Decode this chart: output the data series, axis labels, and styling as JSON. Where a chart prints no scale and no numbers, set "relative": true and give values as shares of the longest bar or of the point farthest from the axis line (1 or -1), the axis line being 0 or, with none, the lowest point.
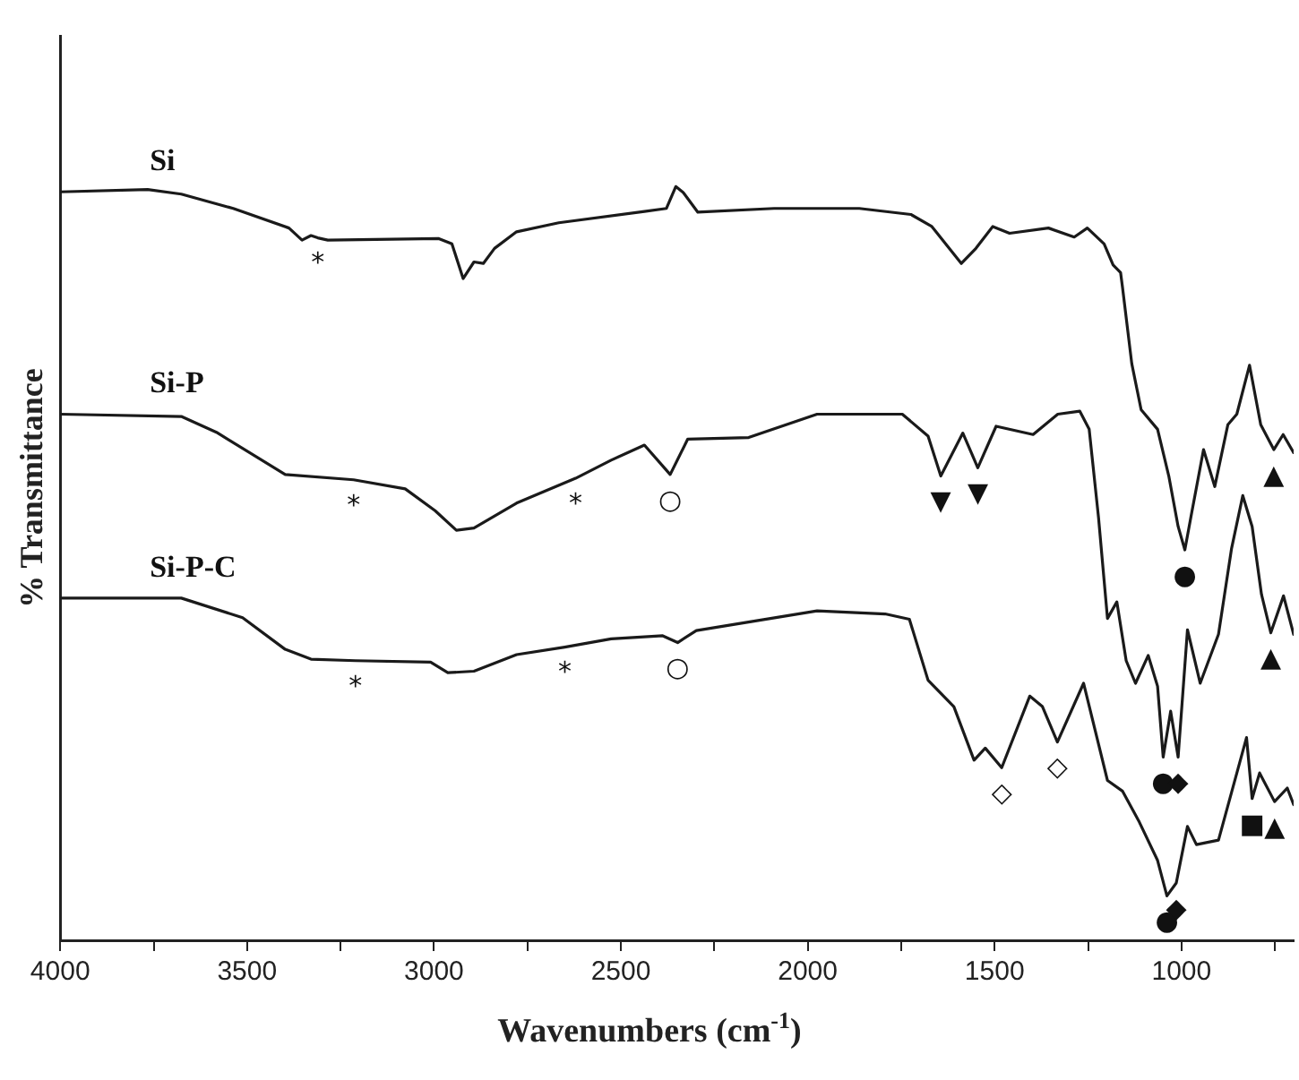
{
  "chart_data": {
    "type": "line",
    "relative": true,
    "xlabel": "Wavenumbers (cm$^{-1}$)",
    "ylabel": "% Transmittance",
    "xlim": [
      4000,
      700
    ],
    "xticks": [
      4000,
      {
        "value": 3750,
        "label": null
      },
      3500,
      {
        "value": 3250,
        "label": null
      },
      3000,
      {
        "value": 2750,
        "label": null
      },
      2500,
      {
        "value": 2250,
        "label": null
      },
      2000,
      {
        "value": 1750,
        "label": null
      },
      1500,
      {
        "value": 1250,
        "label": null
      },
      1000,
      {
        "value": 750,
        "label": null
      }
    ],
    "grid": false,
    "legend": false,
    "marker": "none",
    "line_style": "solid",
    "series": [
      {
        "name": "Si",
        "color": "#1a1a1a",
        "x": [
          4000,
          3766,
          3676,
          3537,
          3388,
          3353,
          3329,
          3311,
          3284,
          2987,
          2952,
          2922,
          2893,
          2868,
          2838,
          2779,
          2666,
          2437,
          2378,
          2353,
          2333,
          2294,
          2090,
          1862,
          1724,
          1668,
          1589,
          1550,
          1505,
          1460,
          1356,
          1287,
          1252,
          1207,
          1183,
          1163,
          1158,
          1133,
          1108,
          1064,
          1034,
          1009,
          991,
          975,
          941,
          911,
          876,
          852,
          818,
          788,
          753,
          728,
          700
        ],
        "values": [
          0.993,
          0.996,
          0.99,
          0.971,
          0.945,
          0.929,
          0.935,
          0.932,
          0.929,
          0.931,
          0.924,
          0.878,
          0.9,
          0.898,
          0.918,
          0.94,
          0.952,
          0.967,
          0.971,
          1,
          0.992,
          0.966,
          0.971,
          0.971,
          0.963,
          0.947,
          0.898,
          0.918,
          0.947,
          0.938,
          0.945,
          0.933,
          0.945,
          0.924,
          0.896,
          0.886,
          0.867,
          0.765,
          0.704,
          0.678,
          0.616,
          0.549,
          0.518,
          0.561,
          0.651,
          0.602,
          0.684,
          0.698,
          0.763,
          0.684,
          0.651,
          0.671,
          0.647
        ]
      },
      {
        "name": "Si-P",
        "color": "#1a1a1a",
        "x": [
          4000,
          3676,
          3582,
          3398,
          3215,
          3077,
          2997,
          2940,
          2893,
          2779,
          2621,
          2526,
          2437,
          2368,
          2321,
          2158,
          1975,
          1747,
          1678,
          1644,
          1585,
          1545,
          1496,
          1397,
          1331,
          1272,
          1247,
          1222,
          1198,
          1173,
          1148,
          1123,
          1089,
          1064,
          1049,
          1029,
          1009,
          984,
          950,
          901,
          866,
          836,
          811,
          786,
          761,
          727,
          700
        ],
        "values": [
          0.698,
          0.695,
          0.674,
          0.618,
          0.611,
          0.599,
          0.57,
          0.544,
          0.547,
          0.58,
          0.613,
          0.637,
          0.657,
          0.618,
          0.665,
          0.667,
          0.698,
          0.698,
          0.669,
          0.616,
          0.673,
          0.627,
          0.682,
          0.671,
          0.698,
          0.702,
          0.678,
          0.561,
          0.427,
          0.449,
          0.371,
          0.341,
          0.378,
          0.337,
          0.243,
          0.304,
          0.243,
          0.412,
          0.341,
          0.406,
          0.52,
          0.59,
          0.549,
          0.459,
          0.408,
          0.457,
          0.406
        ]
      },
      {
        "name": "Si-P-C",
        "color": "#1a1a1a",
        "x": [
          4000,
          3676,
          3512,
          3398,
          3329,
          3210,
          3009,
          2963,
          2893,
          2779,
          2650,
          2526,
          2388,
          2348,
          2298,
          1975,
          1793,
          1728,
          1678,
          1609,
          1555,
          1525,
          1481,
          1406,
          1372,
          1332,
          1262,
          1198,
          1158,
          1113,
          1064,
          1039,
          1014,
          984,
          960,
          901,
          826,
          811,
          791,
          751,
          717,
          700
        ],
        "values": [
          0.454,
          0.454,
          0.428,
          0.386,
          0.373,
          0.371,
          0.369,
          0.355,
          0.357,
          0.379,
          0.389,
          0.4,
          0.404,
          0.395,
          0.411,
          0.437,
          0.433,
          0.426,
          0.345,
          0.31,
          0.239,
          0.255,
          0.229,
          0.324,
          0.31,
          0.263,
          0.341,
          0.212,
          0.198,
          0.157,
          0.106,
          0.059,
          0.076,
          0.151,
          0.127,
          0.133,
          0.269,
          0.188,
          0.222,
          0.184,
          0.202,
          0.18
        ]
      }
    ],
    "annotations": [
      {
        "text": "*",
        "x": 3311,
        "y": 0.932
      },
      {
        "text": "*",
        "x": 3215,
        "y": 0.611
      },
      {
        "text": "*",
        "x": 2621,
        "y": 0.613
      },
      {
        "text": "○",
        "x": 2368,
        "y": 0.618
      },
      {
        "text": "▼",
        "x": 1644,
        "y": 0.616
      },
      {
        "text": "▼",
        "x": 1545,
        "y": 0.627
      },
      {
        "text": "●",
        "x": 991,
        "y": 0.518
      },
      {
        "text": "▲",
        "x": 753,
        "y": 0.651
      },
      {
        "text": "▲",
        "x": 761,
        "y": 0.408
      },
      {
        "text": "*",
        "x": 3210,
        "y": 0.371
      },
      {
        "text": "*",
        "x": 2650,
        "y": 0.389
      },
      {
        "text": "○",
        "x": 2348,
        "y": 0.395
      },
      {
        "text": "◇",
        "x": 1481,
        "y": 0.229
      },
      {
        "text": "◇",
        "x": 1332,
        "y": 0.263
      },
      {
        "text": "●",
        "x": 1049,
        "y": 0.243
      },
      {
        "text": "◆",
        "x": 1009,
        "y": 0.243
      },
      {
        "text": "■",
        "x": 811,
        "y": 0.188
      },
      {
        "text": "▲",
        "x": 751,
        "y": 0.184
      },
      {
        "text": "●",
        "x": 1039,
        "y": 0.059
      },
      {
        "text": "◆",
        "x": 1014,
        "y": 0.076
      }
    ]
  }
}
